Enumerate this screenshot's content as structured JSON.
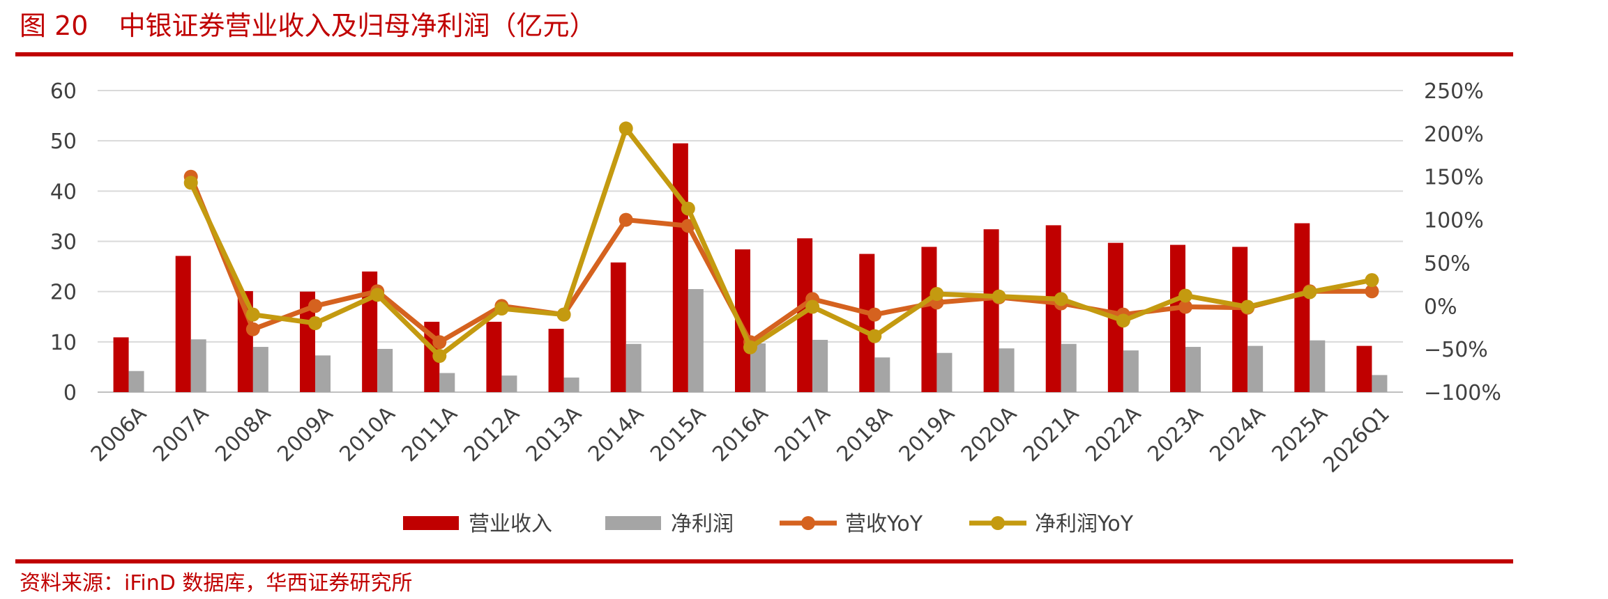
{
  "figure": {
    "number": "图 20",
    "title": "中银证券营业收入及归母净利润（亿元）",
    "source": "资料来源：iFinD 数据库，华西证券研究所"
  },
  "colors": {
    "revenue": "#c00000",
    "net_profit": "#a5a5a5",
    "revenue_yoy": "#d5621f",
    "net_profit_yoy": "#c49a10",
    "rule": "#c00000",
    "grid": "#d9d9d9"
  },
  "chart_data": {
    "type": "bar",
    "categories": [
      "2006A",
      "2007A",
      "2008A",
      "2009A",
      "2010A",
      "2011A",
      "2012A",
      "2013A",
      "2014A",
      "2015A",
      "2016A",
      "2017A",
      "2018A",
      "2019A",
      "2020A",
      "2021A",
      "2022A",
      "2023A",
      "2024A",
      "2025A",
      "2026Q1"
    ],
    "y_left": {
      "min": 0,
      "max": 60,
      "ticks": [
        0,
        10,
        20,
        30,
        40,
        50,
        60
      ]
    },
    "y_right": {
      "min": -100,
      "max": 250,
      "ticks": [
        -100,
        -50,
        0,
        50,
        100,
        150,
        200,
        250
      ],
      "format": "percent"
    },
    "grid": true,
    "legend_position": "bottom",
    "series": [
      {
        "name": "营业收入",
        "type": "bar",
        "axis": "left",
        "values": [
          10.9,
          27.1,
          20.1,
          20.0,
          24.0,
          14.0,
          14.0,
          12.6,
          25.8,
          49.5,
          28.4,
          30.6,
          27.5,
          28.9,
          32.4,
          33.2,
          29.7,
          29.3,
          28.9,
          33.6,
          9.2
        ]
      },
      {
        "name": "净利润",
        "type": "bar",
        "axis": "left",
        "values": [
          4.2,
          10.5,
          9.0,
          7.3,
          8.6,
          3.8,
          3.3,
          2.9,
          9.6,
          20.5,
          9.7,
          10.4,
          6.9,
          7.8,
          8.7,
          9.6,
          8.3,
          9.0,
          9.2,
          10.3,
          3.4
        ]
      },
      {
        "name": "营收YoY",
        "type": "line",
        "axis": "right",
        "values": [
          null,
          150,
          -27,
          0,
          17,
          -42,
          0,
          -10,
          100,
          93,
          -42,
          8,
          -10,
          4,
          10,
          3,
          -10,
          -1,
          -2,
          17,
          17
        ]
      },
      {
        "name": "净利润YoY",
        "type": "line",
        "axis": "right",
        "values": [
          null,
          143,
          -10,
          -20,
          13,
          -58,
          -3,
          -10,
          206,
          113,
          -48,
          -1,
          -35,
          14,
          11,
          8,
          -17,
          12,
          -1,
          16,
          30
        ]
      }
    ]
  }
}
